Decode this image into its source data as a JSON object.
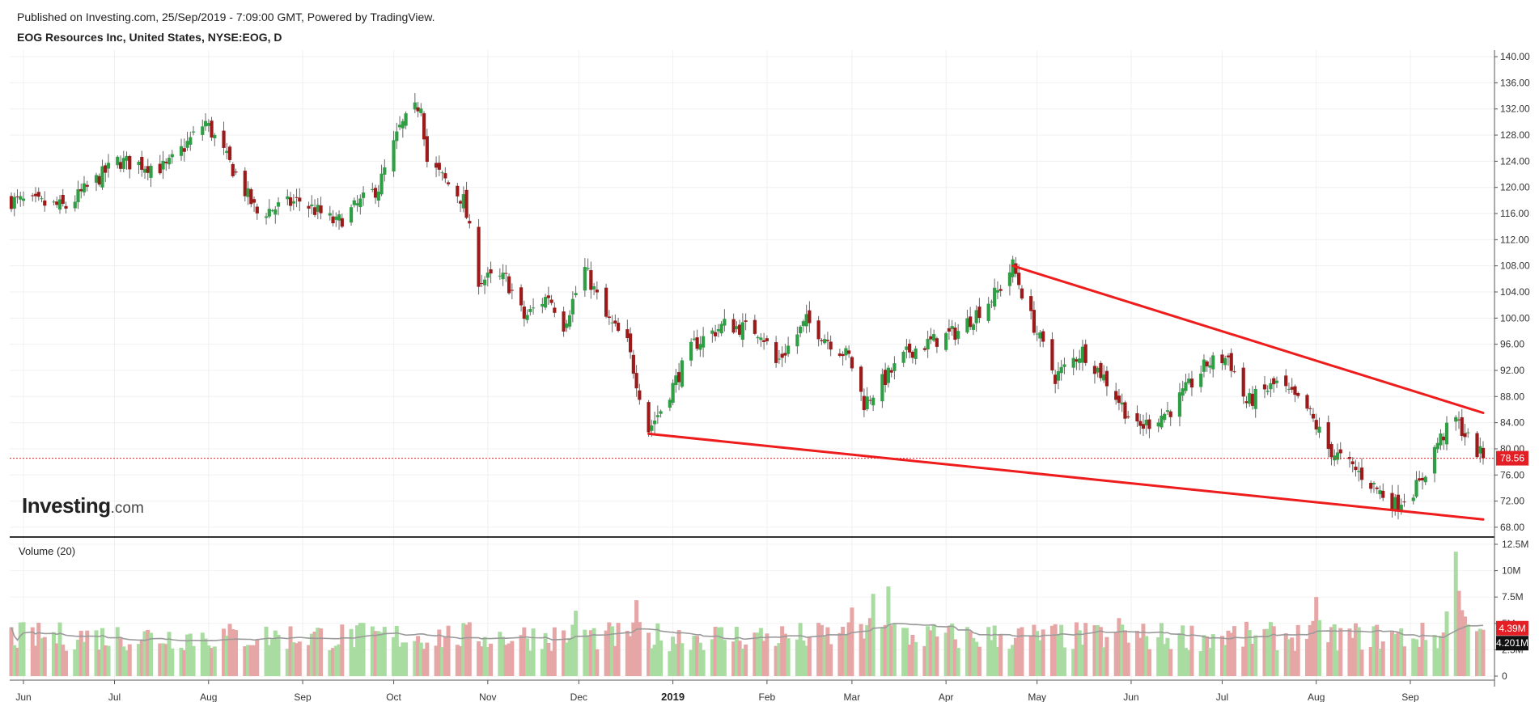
{
  "header": {
    "published": "Published on Investing.com, 25/Sep/2019 - 7:09:00 GMT, Powered by TradingView.",
    "title": "EOG Resources Inc, United States, NYSE:EOG, D"
  },
  "logo": {
    "brand": "Investing",
    "suffix": ".com"
  },
  "volume_panel": {
    "label": "Volume (20)"
  },
  "colors": {
    "up": "#2f9e44",
    "down": "#9b1b1b",
    "vol_up": "#a8dca0",
    "vol_down": "#e6a6a6",
    "trendline": "#ee1c1c",
    "last_price": "#e31e24",
    "ma": "#9a9a9a"
  },
  "chart_data": {
    "type": "candlestick",
    "title": "EOG Resources Inc, United States, NYSE:EOG, D",
    "x_ticks": [
      {
        "label": "Jun",
        "date": "2018-06-01"
      },
      {
        "label": "Jul",
        "date": "2018-07-01"
      },
      {
        "label": "Aug",
        "date": "2018-08-01"
      },
      {
        "label": "Sep",
        "date": "2018-09-01"
      },
      {
        "label": "Oct",
        "date": "2018-10-01"
      },
      {
        "label": "Nov",
        "date": "2018-11-01"
      },
      {
        "label": "Dec",
        "date": "2018-12-01"
      },
      {
        "label": "2019",
        "date": "2019-01-01",
        "bold": true
      },
      {
        "label": "Feb",
        "date": "2019-02-01"
      },
      {
        "label": "Mar",
        "date": "2019-03-01"
      },
      {
        "label": "Apr",
        "date": "2019-04-01"
      },
      {
        "label": "May",
        "date": "2019-05-01"
      },
      {
        "label": "Jun",
        "date": "2019-06-01"
      },
      {
        "label": "Jul",
        "date": "2019-07-01"
      },
      {
        "label": "Aug",
        "date": "2019-08-01"
      },
      {
        "label": "Sep",
        "date": "2019-09-01"
      }
    ],
    "x_range": [
      "2018-05-28",
      "2019-09-25"
    ],
    "price_axis": {
      "ylim": [
        67,
        141
      ],
      "ticks": [
        68,
        72,
        76,
        80,
        84,
        88,
        92,
        96,
        100,
        104,
        108,
        112,
        116,
        120,
        124,
        128,
        132,
        136,
        140
      ],
      "decimals": 2
    },
    "volume_axis": {
      "ylim": [
        0,
        12.5
      ],
      "unit": "M",
      "ticks": [
        {
          "v": 0,
          "label": "0"
        },
        {
          "v": 2.5,
          "label": "2.5M"
        },
        {
          "v": 5,
          "label": "5M"
        },
        {
          "v": 7.5,
          "label": "7.5M"
        },
        {
          "v": 10,
          "label": "10M"
        },
        {
          "v": 12.5,
          "label": "12.5M"
        }
      ]
    },
    "last_price": {
      "value": 78.56,
      "label": "78.56"
    },
    "last_volume": {
      "value": 4.39,
      "label": "4.39M"
    },
    "volume_ma": {
      "value": 4.201,
      "label": "4.201M"
    },
    "price_anchors": [
      [
        "2018-05-28",
        118
      ],
      [
        "2018-06-15",
        117
      ],
      [
        "2018-07-02",
        124
      ],
      [
        "2018-07-18",
        123
      ],
      [
        "2018-07-31",
        130
      ],
      [
        "2018-08-10",
        122
      ],
      [
        "2018-08-17",
        116
      ],
      [
        "2018-08-31",
        118
      ],
      [
        "2018-09-12",
        114.5
      ],
      [
        "2018-09-26",
        120
      ],
      [
        "2018-10-03",
        129
      ],
      [
        "2018-10-10",
        133
      ],
      [
        "2018-10-12",
        124
      ],
      [
        "2018-10-24",
        118
      ],
      [
        "2018-10-29",
        106
      ],
      [
        "2018-11-07",
        106
      ],
      [
        "2018-11-13",
        100
      ],
      [
        "2018-11-21",
        103.5
      ],
      [
        "2018-11-26",
        99
      ],
      [
        "2018-12-03",
        107.5
      ],
      [
        "2018-12-10",
        100
      ],
      [
        "2018-12-17",
        96
      ],
      [
        "2018-12-24",
        83
      ],
      [
        "2018-12-28",
        86
      ],
      [
        "2019-01-08",
        96
      ],
      [
        "2019-01-18",
        99
      ],
      [
        "2019-01-30",
        98
      ],
      [
        "2019-02-04",
        93
      ],
      [
        "2019-02-14",
        99.5
      ],
      [
        "2019-02-28",
        94
      ],
      [
        "2019-03-05",
        87
      ],
      [
        "2019-03-20",
        95
      ],
      [
        "2019-04-05",
        98
      ],
      [
        "2019-04-18",
        104
      ],
      [
        "2019-04-23",
        108
      ],
      [
        "2019-04-29",
        100
      ],
      [
        "2019-05-07",
        91
      ],
      [
        "2019-05-16",
        95
      ],
      [
        "2019-05-23",
        91
      ],
      [
        "2019-06-03",
        83
      ],
      [
        "2019-06-14",
        86
      ],
      [
        "2019-06-26",
        93
      ],
      [
        "2019-07-03",
        94
      ],
      [
        "2019-07-09",
        87
      ],
      [
        "2019-07-19",
        90
      ],
      [
        "2019-07-29",
        86
      ],
      [
        "2019-08-05",
        80
      ],
      [
        "2019-08-16",
        76
      ],
      [
        "2019-08-23",
        73
      ],
      [
        "2019-08-27",
        71.5
      ],
      [
        "2019-09-04",
        74.5
      ],
      [
        "2019-09-10",
        81
      ],
      [
        "2019-09-16",
        84.5
      ],
      [
        "2019-09-20",
        81.5
      ],
      [
        "2019-09-25",
        78.56
      ]
    ],
    "volume_spikes": [
      [
        "2018-11-30",
        6.2
      ],
      [
        "2018-12-20",
        7.2
      ],
      [
        "2019-03-01",
        6.5
      ],
      [
        "2019-03-08",
        7.8
      ],
      [
        "2019-03-13",
        8.5
      ],
      [
        "2019-05-28",
        5.5
      ],
      [
        "2019-08-01",
        7.5
      ],
      [
        "2019-09-16",
        11.8
      ]
    ],
    "volume_base": 4.3,
    "trendlines": [
      {
        "name": "upper",
        "from": [
          "2019-04-23",
          108
        ],
        "to": [
          "2019-09-25",
          85.5
        ]
      },
      {
        "name": "lower",
        "from": [
          "2018-12-24",
          82.3
        ],
        "to": [
          "2019-09-25",
          69.2
        ]
      }
    ]
  }
}
